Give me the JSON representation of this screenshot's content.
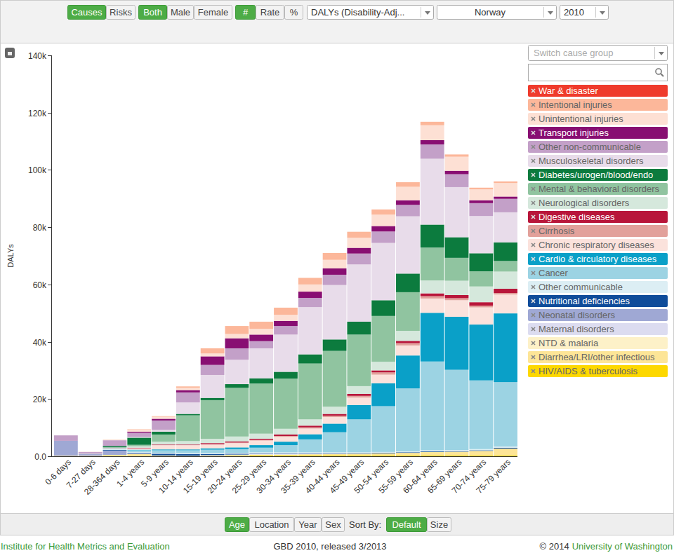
{
  "ui": {
    "toolbar": [
      [
        {
          "label": "Causes",
          "active": true
        },
        {
          "label": "Risks",
          "active": false
        }
      ],
      [
        {
          "label": "Both",
          "active": true
        },
        {
          "label": "Male",
          "active": false
        },
        {
          "label": "Female",
          "active": false
        }
      ],
      [
        {
          "label": "#",
          "active": true
        },
        {
          "label": "Rate",
          "active": false
        },
        {
          "label": "%",
          "active": false
        }
      ]
    ],
    "dropdowns": [
      "DALYs (Disability-Adj...",
      "Norway",
      "2010"
    ],
    "cause_group": "Switch cause group",
    "views": [
      {
        "label": "Age",
        "active": true
      },
      {
        "label": "Location",
        "active": false
      },
      {
        "label": "Year",
        "active": false
      },
      {
        "label": "Sex",
        "active": false
      }
    ],
    "sort_label": "Sort By:",
    "sorts": [
      {
        "label": "Default",
        "active": true
      },
      {
        "label": "Size",
        "active": false
      }
    ],
    "footer": {
      "left": "Institute for Health Metrics and Evaluation",
      "center": "GBD 2010, released 3/2013",
      "right_prefix": "© 2014",
      "right_link": "University of Washington"
    }
  },
  "chart_data": {
    "type": "bar",
    "stacked": true,
    "grid": false,
    "legend": "right",
    "y_label": "DALYs",
    "ylim": [
      0,
      140000
    ],
    "yticks": [
      {
        "value": 0,
        "label": "0.0"
      },
      {
        "value": 20000,
        "label": "20k"
      },
      {
        "value": 40000,
        "label": "40k"
      },
      {
        "value": 60000,
        "label": "60k"
      },
      {
        "value": 80000,
        "label": "80k"
      },
      {
        "value": 100000,
        "label": "100k"
      },
      {
        "value": 120000,
        "label": "120k"
      },
      {
        "value": 140000,
        "label": "140k"
      }
    ],
    "categories": [
      "0-6 days",
      "7-27 days",
      "28-364 days",
      "1-4 years",
      "5-9 years",
      "10-14 years",
      "15-19 years",
      "20-24 years",
      "25-29 years",
      "30-34 years",
      "35-39 years",
      "40-44 years",
      "45-49 years",
      "50-54 years",
      "55-59 years",
      "60-64 years",
      "65-69 years",
      "70-74 years",
      "75-79 years"
    ],
    "series": [
      {
        "name": "HIV/AIDS & tuberculosis",
        "color": "#fdd800",
        "values": [
          0,
          0,
          0,
          0,
          0,
          0,
          100,
          200,
          300,
          300,
          300,
          300,
          300,
          300,
          300,
          300,
          300,
          300,
          300
        ]
      },
      {
        "name": "Diarrhea/LRI/other infectious",
        "color": "#fde597",
        "values": [
          200,
          200,
          500,
          800,
          300,
          200,
          200,
          200,
          300,
          300,
          400,
          500,
          600,
          700,
          900,
          1200,
          1300,
          1600,
          2400
        ]
      },
      {
        "name": "NTD & malaria",
        "color": "#fdf1c8",
        "values": [
          0,
          0,
          0,
          0,
          0,
          0,
          0,
          0,
          0,
          0,
          0,
          0,
          0,
          0,
          0,
          0,
          0,
          0,
          0
        ]
      },
      {
        "name": "Maternal disorders",
        "color": "#dcdcf0",
        "values": [
          0,
          0,
          0,
          0,
          0,
          0,
          100,
          200,
          300,
          300,
          200,
          100,
          0,
          0,
          0,
          0,
          0,
          0,
          0
        ]
      },
      {
        "name": "Neonatal disorders",
        "color": "#9fa8d4",
        "values": [
          5200,
          600,
          1500,
          200,
          0,
          0,
          0,
          0,
          0,
          0,
          0,
          0,
          0,
          0,
          0,
          0,
          0,
          0,
          0
        ]
      },
      {
        "name": "Nutritional deficiencies",
        "color": "#0f4c9a",
        "values": [
          0,
          0,
          200,
          200,
          600,
          600,
          400,
          300,
          200,
          200,
          200,
          200,
          200,
          200,
          200,
          200,
          200,
          200,
          300
        ]
      },
      {
        "name": "Other communicable",
        "color": "#dceef4",
        "values": [
          0,
          0,
          200,
          300,
          300,
          300,
          300,
          300,
          300,
          300,
          300,
          300,
          300,
          300,
          300,
          400,
          400,
          400,
          400
        ]
      },
      {
        "name": "Cancer",
        "color": "#9cd3e3",
        "values": [
          0,
          0,
          100,
          600,
          900,
          1000,
          1200,
          1300,
          1600,
          2500,
          4500,
          7000,
          11500,
          16000,
          22000,
          31000,
          28000,
          24000,
          22500
        ]
      },
      {
        "name": "Cardio & circulatory diseases",
        "color": "#0aa0c8",
        "values": [
          0,
          0,
          100,
          200,
          300,
          300,
          500,
          600,
          900,
          1200,
          1800,
          3000,
          5000,
          8000,
          11500,
          17000,
          18500,
          19500,
          24000
        ]
      },
      {
        "name": "Chronic respiratory diseases",
        "color": "#fbe2dc",
        "values": [
          0,
          0,
          100,
          500,
          1500,
          1500,
          1300,
          1500,
          1600,
          1700,
          2000,
          2300,
          2600,
          3000,
          3500,
          5000,
          5800,
          6000,
          6600
        ]
      },
      {
        "name": "Cirrhosis",
        "color": "#e2a19b",
        "values": [
          0,
          0,
          0,
          0,
          0,
          0,
          100,
          200,
          200,
          300,
          400,
          500,
          600,
          800,
          800,
          800,
          700,
          600,
          500
        ]
      },
      {
        "name": "Digestive diseases",
        "color": "#b8163a",
        "values": [
          0,
          0,
          100,
          200,
          200,
          200,
          400,
          400,
          400,
          500,
          600,
          600,
          700,
          700,
          800,
          1000,
          1100,
          1200,
          1500
        ]
      },
      {
        "name": "Neurological disorders",
        "color": "#d5e8dc",
        "values": [
          0,
          100,
          300,
          500,
          1000,
          1200,
          1500,
          1700,
          1800,
          2000,
          2200,
          2500,
          2700,
          3000,
          3500,
          4500,
          5000,
          5500,
          6000
        ]
      },
      {
        "name": "Mental & behavioral disorders",
        "color": "#90c4a0",
        "values": [
          0,
          0,
          0,
          500,
          2500,
          9000,
          13500,
          17000,
          17500,
          17500,
          19500,
          19500,
          18000,
          16000,
          13500,
          11500,
          8000,
          5300,
          3700
        ]
      },
      {
        "name": "Diabetes/urogen/blood/endo",
        "color": "#0c7b3e",
        "values": [
          0,
          0,
          500,
          2500,
          1000,
          500,
          800,
          1300,
          1800,
          2400,
          3200,
          4000,
          4500,
          5500,
          6500,
          8000,
          7200,
          6300,
          6500
        ]
      },
      {
        "name": "Musculoskeletal disorders",
        "color": "#e8dcea",
        "values": [
          0,
          0,
          0,
          200,
          600,
          4000,
          8000,
          8500,
          10500,
          13000,
          16500,
          19000,
          20000,
          20000,
          20000,
          23000,
          17500,
          13000,
          10500
        ]
      },
      {
        "name": "Other non-communicable",
        "color": "#c3a0c8",
        "values": [
          1900,
          600,
          2000,
          1500,
          3300,
          3500,
          3500,
          4000,
          2500,
          3000,
          3200,
          3600,
          3800,
          4000,
          4000,
          5000,
          4500,
          4500,
          4700
        ]
      },
      {
        "name": "Transport injuries",
        "color": "#880e72",
        "values": [
          0,
          0,
          0,
          400,
          600,
          800,
          3000,
          3500,
          2300,
          1800,
          2200,
          2200,
          2000,
          1900,
          1600,
          1500,
          1200,
          1000,
          800
        ]
      },
      {
        "name": "Unintentional injuries",
        "color": "#fde0d4",
        "values": [
          0,
          100,
          300,
          800,
          700,
          800,
          1000,
          1500,
          2000,
          2100,
          2500,
          3000,
          3500,
          4000,
          4700,
          5200,
          4900,
          3800,
          4700
        ]
      },
      {
        "name": "Intentional injuries",
        "color": "#fcb79a",
        "values": [
          0,
          0,
          0,
          100,
          200,
          500,
          1800,
          2800,
          2500,
          2500,
          2300,
          2400,
          2100,
          1800,
          1600,
          1200,
          800,
          600,
          600
        ]
      },
      {
        "name": "War & disaster",
        "color": "#ef3b2c",
        "values": [
          0,
          0,
          0,
          0,
          0,
          0,
          0,
          0,
          0,
          0,
          0,
          0,
          0,
          0,
          0,
          0,
          0,
          0,
          0
        ]
      }
    ]
  }
}
